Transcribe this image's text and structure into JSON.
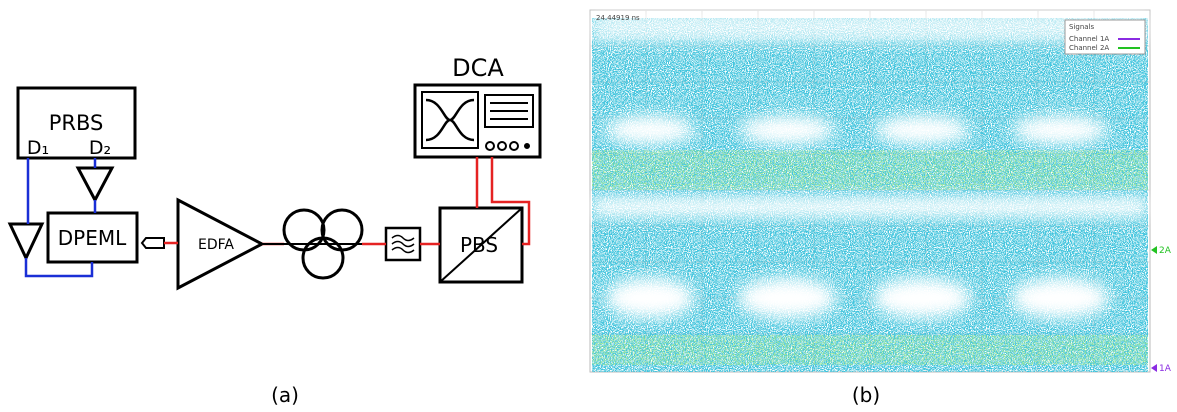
{
  "panel_a": {
    "caption": "(a)",
    "nodes": [
      {
        "label": "PRBS"
      },
      {
        "label": "D₁"
      },
      {
        "label": "D₂"
      },
      {
        "label": "DPEML"
      },
      {
        "label": "EDFA"
      },
      {
        "label": "DCA"
      },
      {
        "label": "PBS"
      }
    ]
  },
  "panel_b": {
    "caption": "(b)",
    "time_label": "24.44919 ns",
    "legend": {
      "title": "Signals",
      "entries": [
        "Channel 1A",
        "Channel 2A"
      ]
    },
    "markers": [
      "2A",
      "1A"
    ]
  }
}
